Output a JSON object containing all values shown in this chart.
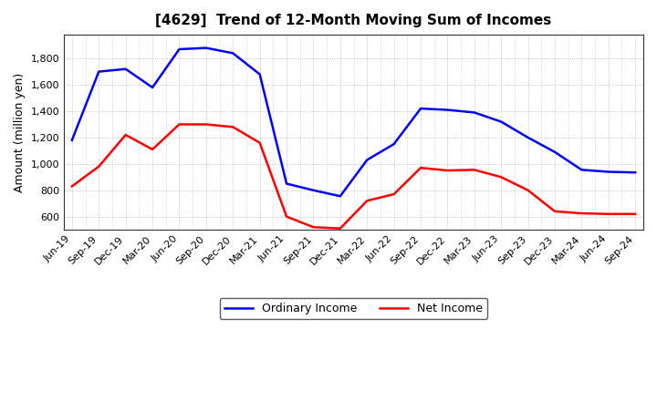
{
  "title": "[4629]  Trend of 12-Month Moving Sum of Incomes",
  "ylabel": "Amount (million yen)",
  "labels": [
    "Jun-19",
    "Sep-19",
    "Dec-19",
    "Mar-20",
    "Jun-20",
    "Sep-20",
    "Dec-20",
    "Mar-21",
    "Jun-21",
    "Sep-21",
    "Dec-21",
    "Mar-22",
    "Jun-22",
    "Sep-22",
    "Dec-22",
    "Mar-23",
    "Jun-23",
    "Sep-23",
    "Dec-23",
    "Mar-24",
    "Jun-24",
    "Sep-24"
  ],
  "ordinary_income": [
    1180,
    1700,
    1720,
    1580,
    1870,
    1880,
    1840,
    1680,
    850,
    800,
    755,
    1030,
    1150,
    1420,
    1410,
    1390,
    1320,
    1200,
    1090,
    955,
    940,
    935
  ],
  "net_income": [
    830,
    980,
    1220,
    1110,
    1300,
    1300,
    1280,
    1160,
    600,
    520,
    510,
    720,
    770,
    970,
    950,
    955,
    900,
    800,
    640,
    625,
    620,
    620
  ],
  "ordinary_color": "#0000FF",
  "net_color": "#FF0000",
  "background_color": "#FFFFFF",
  "grid_color": "#AAAAAA",
  "ylim_min": 500,
  "ylim_max": 1980,
  "yticks": [
    600,
    800,
    1000,
    1200,
    1400,
    1600,
    1800
  ],
  "legend_ordinary": "Ordinary Income",
  "legend_net": "Net Income",
  "title_fontsize": 11,
  "axis_fontsize": 8,
  "ylabel_fontsize": 9
}
